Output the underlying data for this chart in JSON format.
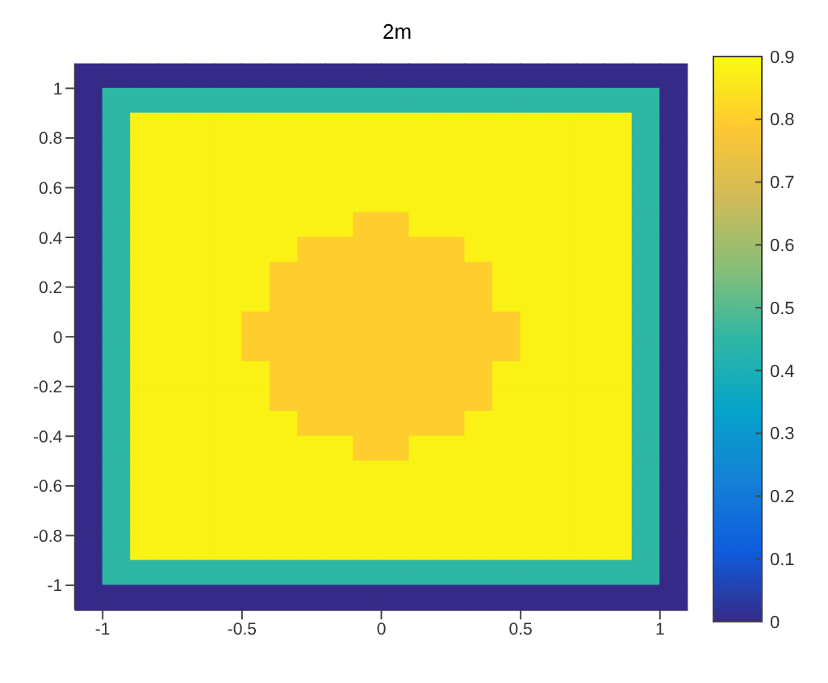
{
  "chart_data": {
    "type": "heatmap",
    "title": "2m",
    "cells": [
      [
        0,
        0,
        0,
        0,
        0,
        0,
        0,
        0,
        0,
        0,
        0,
        0,
        0,
        0,
        0,
        0,
        0,
        0,
        0,
        0,
        0,
        0
      ],
      [
        0,
        0.45,
        0.45,
        0.45,
        0.45,
        0.45,
        0.45,
        0.45,
        0.45,
        0.45,
        0.45,
        0.45,
        0.45,
        0.45,
        0.45,
        0.45,
        0.45,
        0.45,
        0.45,
        0.45,
        0.45,
        0
      ],
      [
        0,
        0.45,
        0.88,
        0.88,
        0.88,
        0.88,
        0.88,
        0.88,
        0.88,
        0.88,
        0.88,
        0.88,
        0.88,
        0.88,
        0.88,
        0.88,
        0.88,
        0.88,
        0.88,
        0.88,
        0.45,
        0
      ],
      [
        0,
        0.45,
        0.88,
        0.88,
        0.88,
        0.88,
        0.88,
        0.88,
        0.88,
        0.88,
        0.88,
        0.88,
        0.88,
        0.88,
        0.88,
        0.88,
        0.88,
        0.88,
        0.88,
        0.88,
        0.45,
        0
      ],
      [
        0,
        0.45,
        0.88,
        0.88,
        0.88,
        0.88,
        0.88,
        0.88,
        0.88,
        0.88,
        0.88,
        0.88,
        0.88,
        0.88,
        0.88,
        0.88,
        0.88,
        0.88,
        0.88,
        0.88,
        0.45,
        0
      ],
      [
        0,
        0.45,
        0.88,
        0.88,
        0.88,
        0.88,
        0.88,
        0.88,
        0.88,
        0.88,
        0.88,
        0.88,
        0.88,
        0.88,
        0.88,
        0.88,
        0.88,
        0.88,
        0.88,
        0.88,
        0.45,
        0
      ],
      [
        0,
        0.45,
        0.88,
        0.88,
        0.88,
        0.88,
        0.88,
        0.88,
        0.88,
        0.88,
        0.8,
        0.8,
        0.88,
        0.88,
        0.88,
        0.88,
        0.88,
        0.88,
        0.88,
        0.88,
        0.45,
        0
      ],
      [
        0,
        0.45,
        0.88,
        0.88,
        0.88,
        0.88,
        0.88,
        0.88,
        0.8,
        0.8,
        0.8,
        0.8,
        0.8,
        0.8,
        0.88,
        0.88,
        0.88,
        0.88,
        0.88,
        0.88,
        0.45,
        0
      ],
      [
        0,
        0.45,
        0.88,
        0.88,
        0.88,
        0.88,
        0.88,
        0.8,
        0.8,
        0.8,
        0.8,
        0.8,
        0.8,
        0.8,
        0.8,
        0.88,
        0.88,
        0.88,
        0.88,
        0.88,
        0.45,
        0
      ],
      [
        0,
        0.45,
        0.88,
        0.88,
        0.88,
        0.88,
        0.88,
        0.8,
        0.8,
        0.8,
        0.8,
        0.8,
        0.8,
        0.8,
        0.8,
        0.88,
        0.88,
        0.88,
        0.88,
        0.88,
        0.45,
        0
      ],
      [
        0,
        0.45,
        0.88,
        0.88,
        0.88,
        0.88,
        0.8,
        0.8,
        0.8,
        0.8,
        0.8,
        0.8,
        0.8,
        0.8,
        0.8,
        0.8,
        0.88,
        0.88,
        0.88,
        0.88,
        0.45,
        0
      ],
      [
        0,
        0.45,
        0.88,
        0.88,
        0.88,
        0.88,
        0.8,
        0.8,
        0.8,
        0.8,
        0.8,
        0.8,
        0.8,
        0.8,
        0.8,
        0.8,
        0.88,
        0.88,
        0.88,
        0.88,
        0.45,
        0
      ],
      [
        0,
        0.45,
        0.88,
        0.88,
        0.88,
        0.88,
        0.88,
        0.8,
        0.8,
        0.8,
        0.8,
        0.8,
        0.8,
        0.8,
        0.8,
        0.88,
        0.88,
        0.88,
        0.88,
        0.88,
        0.45,
        0
      ],
      [
        0,
        0.45,
        0.88,
        0.88,
        0.88,
        0.88,
        0.88,
        0.8,
        0.8,
        0.8,
        0.8,
        0.8,
        0.8,
        0.8,
        0.8,
        0.88,
        0.88,
        0.88,
        0.88,
        0.88,
        0.45,
        0
      ],
      [
        0,
        0.45,
        0.88,
        0.88,
        0.88,
        0.88,
        0.88,
        0.88,
        0.8,
        0.8,
        0.8,
        0.8,
        0.8,
        0.8,
        0.88,
        0.88,
        0.88,
        0.88,
        0.88,
        0.88,
        0.45,
        0
      ],
      [
        0,
        0.45,
        0.88,
        0.88,
        0.88,
        0.88,
        0.88,
        0.88,
        0.88,
        0.88,
        0.8,
        0.8,
        0.88,
        0.88,
        0.88,
        0.88,
        0.88,
        0.88,
        0.88,
        0.88,
        0.45,
        0
      ],
      [
        0,
        0.45,
        0.88,
        0.88,
        0.88,
        0.88,
        0.88,
        0.88,
        0.88,
        0.88,
        0.88,
        0.88,
        0.88,
        0.88,
        0.88,
        0.88,
        0.88,
        0.88,
        0.88,
        0.88,
        0.45,
        0
      ],
      [
        0,
        0.45,
        0.88,
        0.88,
        0.88,
        0.88,
        0.88,
        0.88,
        0.88,
        0.88,
        0.88,
        0.88,
        0.88,
        0.88,
        0.88,
        0.88,
        0.88,
        0.88,
        0.88,
        0.88,
        0.45,
        0
      ],
      [
        0,
        0.45,
        0.88,
        0.88,
        0.88,
        0.88,
        0.88,
        0.88,
        0.88,
        0.88,
        0.88,
        0.88,
        0.88,
        0.88,
        0.88,
        0.88,
        0.88,
        0.88,
        0.88,
        0.88,
        0.45,
        0
      ],
      [
        0,
        0.45,
        0.88,
        0.88,
        0.88,
        0.88,
        0.88,
        0.88,
        0.88,
        0.88,
        0.88,
        0.88,
        0.88,
        0.88,
        0.88,
        0.88,
        0.88,
        0.88,
        0.88,
        0.88,
        0.45,
        0
      ],
      [
        0,
        0.45,
        0.45,
        0.45,
        0.45,
        0.45,
        0.45,
        0.45,
        0.45,
        0.45,
        0.45,
        0.45,
        0.45,
        0.45,
        0.45,
        0.45,
        0.45,
        0.45,
        0.45,
        0.45,
        0.45,
        0
      ],
      [
        0,
        0,
        0,
        0,
        0,
        0,
        0,
        0,
        0,
        0,
        0,
        0,
        0,
        0,
        0,
        0,
        0,
        0,
        0,
        0,
        0,
        0
      ]
    ],
    "xlim": [
      -1.1,
      1.1
    ],
    "ylim": [
      -1.1,
      1.1
    ],
    "xticks": [
      -1,
      -0.5,
      0,
      0.5,
      1
    ],
    "yticks": [
      -1,
      -0.8,
      -0.6,
      -0.4,
      -0.2,
      0,
      0.2,
      0.4,
      0.6,
      0.8,
      1
    ],
    "clim": [
      0,
      0.9
    ],
    "cticks": [
      0,
      0.1,
      0.2,
      0.3,
      0.4,
      0.5,
      0.6,
      0.7,
      0.8,
      0.9
    ]
  }
}
